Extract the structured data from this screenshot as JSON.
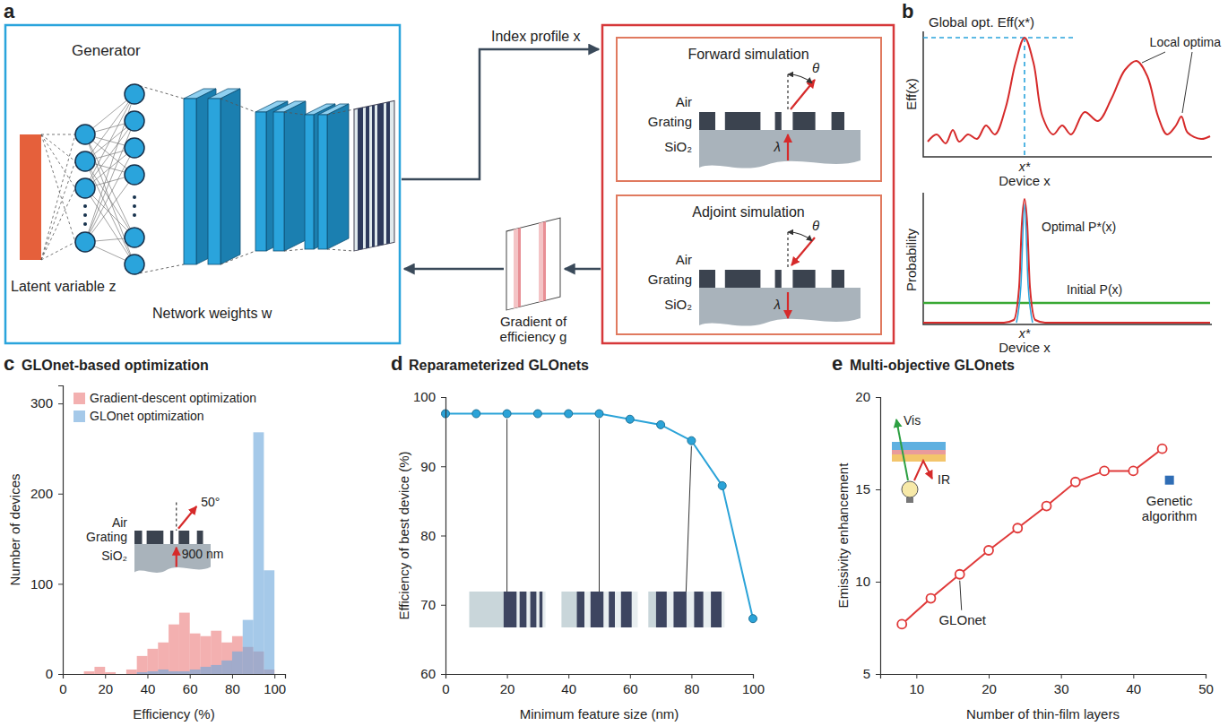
{
  "panel_a": {
    "panel_label": "a",
    "generator": "Generator",
    "latent": "Latent variable z",
    "weights": "Network weights w",
    "index_profile": "Index profile x",
    "gradient": "Gradient of efficiency g",
    "forward": "Forward simulation",
    "adjoint": "Adjoint simulation",
    "air": "Air",
    "grating": "Grating",
    "substrate": "SiO₂",
    "wavelength": "λ",
    "angle": "θ"
  },
  "panel_b": {
    "panel_label": "b",
    "global_opt": "Global opt. Eff(x*)",
    "eff_label": "Eff(x)",
    "local_optima": "Local optima",
    "device": "Device x",
    "x_star": "x*",
    "probability": "Probability",
    "optimal": "Optimal P*(x)",
    "initial": "Initial P(x)"
  },
  "chart_data": [
    {
      "type": "histogram",
      "panel_label": "c",
      "title": "GLOnet-based optimization",
      "x_label": "Efficiency (%)",
      "y_label": "Number of devices",
      "bins": [
        0,
        5,
        10,
        15,
        20,
        25,
        30,
        35,
        40,
        45,
        50,
        55,
        60,
        65,
        70,
        75,
        80,
        85,
        90,
        95,
        100
      ],
      "series": [
        {
          "name": "Gradient-descent optimization",
          "color": "#ec7f7f",
          "values": [
            0,
            0,
            3,
            8,
            2,
            0,
            5,
            20,
            28,
            35,
            55,
            68,
            45,
            42,
            48,
            35,
            42,
            30,
            25,
            5
          ]
        },
        {
          "name": "GLOnet optimization",
          "color": "#6ea8dc",
          "values": [
            0,
            0,
            0,
            0,
            0,
            0,
            0,
            2,
            3,
            5,
            3,
            3,
            5,
            8,
            10,
            15,
            25,
            60,
            268,
            115
          ]
        }
      ],
      "xlim": [
        0,
        105
      ],
      "xticks": [
        0,
        20,
        40,
        60,
        80,
        100
      ],
      "ylim": [
        0,
        320
      ],
      "yticks": [
        0,
        100,
        200,
        300
      ],
      "legend": "top-left",
      "annotations": {
        "air": "Air",
        "grating": "Grating",
        "substrate": "SiO₂",
        "angle": "50°",
        "wavelength": "900 nm"
      }
    },
    {
      "type": "line",
      "panel_label": "d",
      "title": "Reparameterized GLOnets",
      "x_label": "Minimum feature size (nm)",
      "y_label": "Efficiency of best device (%)",
      "x": [
        0,
        10,
        20,
        30,
        40,
        50,
        60,
        70,
        80,
        90,
        100
      ],
      "series": [
        {
          "color": "#2ba3d8",
          "marker": "circle",
          "values": [
            97.6,
            97.6,
            97.6,
            97.6,
            97.6,
            97.6,
            96.8,
            96,
            93.7,
            87.2,
            68
          ]
        }
      ],
      "xlim": [
        0,
        100
      ],
      "xticks": [
        0,
        20,
        40,
        60,
        80,
        100
      ],
      "ylim": [
        60,
        100
      ],
      "yticks": [
        60,
        70,
        80,
        90,
        100
      ]
    },
    {
      "type": "line",
      "panel_label": "e",
      "title": "Multi-objective GLOnets",
      "x_label": "Number of thin-film layers",
      "y_label": "Emissivity enhancement",
      "x": [
        8,
        12,
        16,
        20,
        24,
        28,
        32,
        36,
        40,
        44
      ],
      "series": [
        {
          "name": "GLOnet",
          "type": "line",
          "color": "#e03a3a",
          "marker": "open-circle",
          "values": [
            7.7,
            9.1,
            10.4,
            11.7,
            12.9,
            14.1,
            15.4,
            16.0,
            16.0,
            17.2
          ]
        },
        {
          "name": "Genetic algorithm",
          "type": "scatter",
          "color": "#2f6db5",
          "marker": "square",
          "x": [
            45
          ],
          "values": [
            15.5
          ]
        }
      ],
      "xlim": [
        5,
        50
      ],
      "xticks": [
        10,
        20,
        30,
        40,
        50
      ],
      "ylim": [
        5,
        20
      ],
      "yticks": [
        5,
        10,
        15,
        20
      ],
      "annotations": {
        "vis": "Vis",
        "ir": "IR"
      }
    }
  ]
}
